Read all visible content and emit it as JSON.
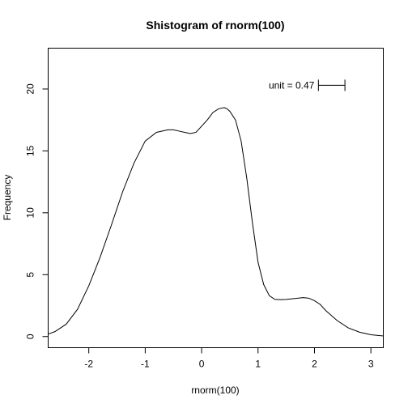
{
  "chart_data": {
    "type": "line",
    "title": "Shistogram of rnorm(100)",
    "xlabel": "rnorm(100)",
    "ylabel": "Frequency",
    "xlim": [
      -2.72,
      3.22
    ],
    "ylim": [
      -0.9,
      23.3
    ],
    "xticks": [
      "-2",
      "-1",
      "0",
      "1",
      "2",
      "3"
    ],
    "yticks": [
      "0",
      "5",
      "10",
      "15",
      "20"
    ],
    "grid": false,
    "annotation": {
      "text": "unit = 0.47",
      "unit": 0.47,
      "x_start": 2.07
    },
    "series": [
      {
        "x": [
          -2.72,
          -2.6,
          -2.4,
          -2.2,
          -2.0,
          -1.8,
          -1.6,
          -1.4,
          -1.2,
          -1.0,
          -0.8,
          -0.6,
          -0.5,
          -0.4,
          -0.3,
          -0.2,
          -0.1,
          0.0,
          0.1,
          0.2,
          0.3,
          0.4,
          0.45,
          0.5,
          0.6,
          0.7,
          0.8,
          0.9,
          1.0,
          1.1,
          1.2,
          1.3,
          1.4,
          1.5,
          1.6,
          1.7,
          1.8,
          1.9,
          2.0,
          2.1,
          2.2,
          2.4,
          2.6,
          2.8,
          3.0,
          3.22
        ],
        "y": [
          0.2,
          0.4,
          1.0,
          2.2,
          4.1,
          6.4,
          9.0,
          11.7,
          14.0,
          15.8,
          16.5,
          16.7,
          16.7,
          16.6,
          16.5,
          16.4,
          16.5,
          17.0,
          17.5,
          18.1,
          18.4,
          18.5,
          18.4,
          18.2,
          17.5,
          15.8,
          12.8,
          9.2,
          6.0,
          4.2,
          3.3,
          3.0,
          2.98,
          3.0,
          3.05,
          3.1,
          3.15,
          3.1,
          2.9,
          2.6,
          2.1,
          1.3,
          0.7,
          0.35,
          0.15,
          0.05
        ]
      }
    ]
  }
}
